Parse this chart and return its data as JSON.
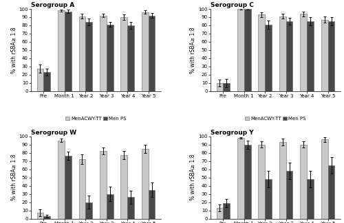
{
  "subplots": [
    {
      "title": "Serogroup A",
      "categories": [
        "Pre",
        "Month 1",
        "Year 2",
        "Year 3",
        "Year 4",
        "Year 5"
      ],
      "MenACWY_TT": [
        27,
        98,
        91,
        92,
        90,
        96
      ],
      "Men_PS": [
        23,
        97,
        84,
        81,
        80,
        92
      ],
      "MenACWY_TT_err": [
        5,
        1,
        3,
        2,
        3,
        2
      ],
      "Men_PS_err": [
        4,
        2,
        4,
        3,
        4,
        3
      ],
      "legend": [
        "MenACWY-TT",
        "Men PS"
      ]
    },
    {
      "title": "Serogroup C",
      "categories": [
        "Pre",
        "Month 1",
        "Year 2",
        "Year 3",
        "Year 4",
        "Year 5"
      ],
      "MenACWY_TT": [
        10,
        100,
        93,
        91,
        94,
        87
      ],
      "Men_PS": [
        10,
        100,
        81,
        85,
        85,
        85
      ],
      "MenACWY_TT_err": [
        4,
        0.5,
        3,
        3,
        3,
        4
      ],
      "Men_PS_err": [
        5,
        0.5,
        5,
        4,
        5,
        5
      ],
      "legend": [
        "MenACWY-TT",
        "Men PS"
      ]
    },
    {
      "title": "Serogroup W",
      "categories": [
        "Pre",
        "Month 1",
        "Year 2",
        "Year 3",
        "Year 4",
        "Year 5"
      ],
      "MenACWY_TT": [
        7,
        95,
        72,
        82,
        77,
        85
      ],
      "Men_PS": [
        3,
        76,
        20,
        30,
        26,
        35
      ],
      "MenACWY_TT_err": [
        4,
        2,
        6,
        4,
        5,
        5
      ],
      "Men_PS_err": [
        2,
        5,
        8,
        9,
        8,
        9
      ],
      "legend": [
        "MenACWY-TT",
        "Men-PS"
      ]
    },
    {
      "title": "Serogroup Y",
      "categories": [
        "Pre",
        "Month 1",
        "Year 2",
        "Year 3",
        "Year 4",
        "Year 5"
      ],
      "MenACWY_TT": [
        13,
        98,
        90,
        93,
        90,
        96
      ],
      "Men_PS": [
        19,
        90,
        48,
        58,
        48,
        65
      ],
      "MenACWY_TT_err": [
        4,
        1,
        4,
        4,
        4,
        3
      ],
      "Men_PS_err": [
        5,
        5,
        10,
        10,
        10,
        10
      ],
      "legend": [
        "MenACWY-TT",
        "Men-PS"
      ]
    }
  ],
  "color_TT": "#c8c8c8",
  "color_PS": "#484848",
  "ylabel": "% with rSBA≥ 1:8",
  "ylim": [
    0,
    100
  ],
  "bar_width": 0.32,
  "edgecolor": "#666666",
  "title_fontsize": 6.5,
  "label_fontsize": 5.5,
  "tick_fontsize": 5.0,
  "legend_fontsize": 5.0
}
